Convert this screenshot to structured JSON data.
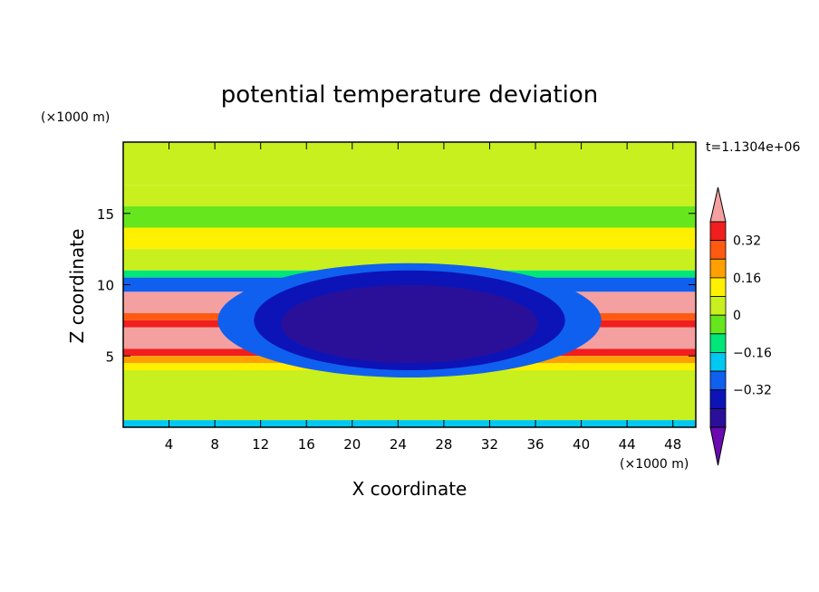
{
  "chart_data": {
    "type": "heatmap",
    "title": "potential temperature deviation",
    "xlabel": "X coordinate",
    "ylabel": "Z coordinate",
    "x_unit": "(×1000 m)",
    "y_unit": "(×1000 m)",
    "time_label": "t=1.1304e+06",
    "xlim": [
      0,
      50
    ],
    "ylim": [
      0,
      20
    ],
    "x_ticks": [
      4,
      8,
      12,
      16,
      20,
      24,
      28,
      32,
      36,
      40,
      44,
      48
    ],
    "y_ticks": [
      5,
      10,
      15
    ],
    "colorbar": {
      "levels": [
        -0.48,
        -0.4,
        -0.32,
        -0.24,
        -0.16,
        -0.08,
        0,
        0.08,
        0.16,
        0.24,
        0.32,
        0.4
      ],
      "tick_labels": [
        "0.32",
        "0.16",
        "0",
        "−0.16",
        "−0.32"
      ],
      "tick_values": [
        0.32,
        0.16,
        0,
        -0.16,
        -0.32
      ],
      "colors": [
        "#6a0ab0",
        "#2a1098",
        "#0c14b8",
        "#1060f0",
        "#00c8f0",
        "#00e678",
        "#66e61c",
        "#c8f01e",
        "#fff000",
        "#ffa000",
        "#ff5a10",
        "#f01e1e",
        "#f5a0a0"
      ]
    },
    "bands": [
      {
        "z": [
          17,
          20
        ],
        "level": 0.04
      },
      {
        "z": [
          15.5,
          17
        ],
        "level": 0.02
      },
      {
        "z": [
          14,
          15.5
        ],
        "level": -0.08
      },
      {
        "z": [
          12.5,
          14
        ],
        "level": 0.12
      },
      {
        "z": [
          11,
          12.5
        ],
        "level": 0.02
      },
      {
        "z": [
          10.5,
          11
        ],
        "level": -0.12
      },
      {
        "z": [
          9.5,
          10.5
        ],
        "level": -0.3
      },
      {
        "z": [
          8,
          9.5
        ],
        "level": 0.44
      },
      {
        "z": [
          7.5,
          8
        ],
        "level": 0.28
      },
      {
        "z": [
          7,
          7.5
        ],
        "level": 0.36
      },
      {
        "z": [
          5.5,
          7
        ],
        "level": 0.44
      },
      {
        "z": [
          5,
          5.5
        ],
        "level": 0.36
      },
      {
        "z": [
          4.5,
          5
        ],
        "level": 0.2
      },
      {
        "z": [
          4,
          4.5
        ],
        "level": 0.08
      },
      {
        "z": [
          0.5,
          4
        ],
        "level": 0.02
      },
      {
        "z": [
          0,
          0.5
        ],
        "level": -0.2
      }
    ],
    "cold_pool": {
      "x": [
        13,
        37
      ],
      "z": [
        4,
        11
      ],
      "level": -0.46
    }
  }
}
